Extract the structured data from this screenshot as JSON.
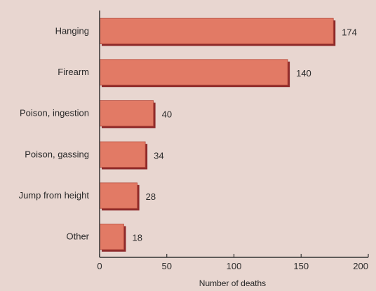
{
  "chart_data": {
    "type": "bar",
    "orientation": "horizontal",
    "categories": [
      "Hanging",
      "Firearm",
      "Poison, ingestion",
      "Poison, gassing",
      "Jump from height",
      "Other"
    ],
    "values": [
      174,
      140,
      40,
      34,
      28,
      18
    ],
    "data_labels": [
      "174",
      "140",
      "40",
      "34",
      "28",
      "18"
    ],
    "xlabel": "Number of deaths",
    "xlim": [
      0,
      200
    ],
    "xticks": [
      "0",
      "50",
      "100",
      "150",
      "200"
    ],
    "xtick_values": [
      0,
      50,
      100,
      150,
      200
    ],
    "grid": false,
    "legend": "none",
    "colors": {
      "bar": "#e27a65",
      "bar_edge": "#8e2a2a",
      "background": "#e8d6d0",
      "axis": "#333333"
    }
  }
}
